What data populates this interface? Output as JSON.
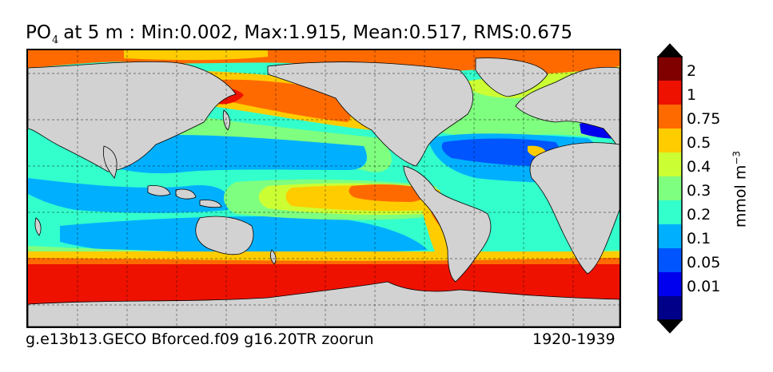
{
  "title": {
    "variable": "PO",
    "subscript": "4",
    "text": "at 5 m : Min:0.002, Max:1.915, Mean:0.517, RMS:0.675"
  },
  "footer": {
    "left": "g.e13b13.GECO Bforced.f09 g16.20TR zoorun",
    "right": "1920-1939"
  },
  "colorbar": {
    "units_base": "mmol m",
    "units_exp": "−3",
    "labels": [
      "2",
      "1",
      "0.75",
      "0.5",
      "0.4",
      "0.3",
      "0.2",
      "0.1",
      "0.05",
      "0.01"
    ],
    "colors": [
      "#800000",
      "#ee1100",
      "#ff6a00",
      "#ffcc00",
      "#ccff33",
      "#7fff7f",
      "#33ffcc",
      "#00b0ff",
      "#0055ff",
      "#0000ee",
      "#000088"
    ],
    "extend_top_color": "#000000",
    "extend_bottom_color": "#000000"
  },
  "map": {
    "land_color": "#d2d2d2",
    "grid": "on",
    "grid_style": "dashed"
  }
}
